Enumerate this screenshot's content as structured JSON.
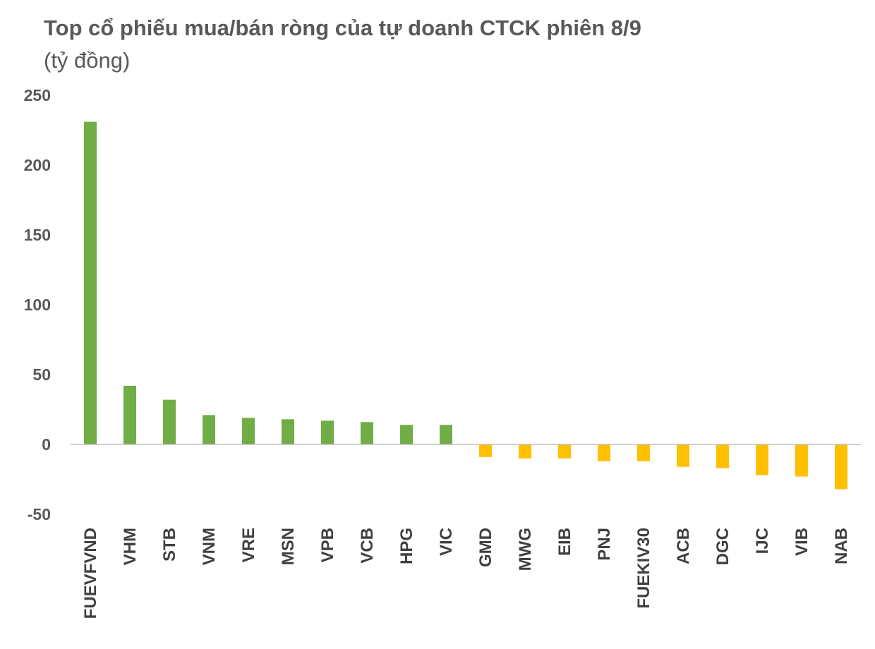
{
  "colors": {
    "positive": "#70AD47",
    "negative": "#FFC000",
    "axis": "#BFBFBF",
    "text": "#595959"
  },
  "chart_data": {
    "type": "bar",
    "title": "Top cổ phiếu mua/bán ròng của tự doanh CTCK phiên 8/9",
    "subtitle": "(tỷ đồng)",
    "xlabel": "",
    "ylabel": "",
    "ylim": [
      -50,
      250
    ],
    "yticks": [
      250,
      200,
      150,
      100,
      50,
      0,
      -50
    ],
    "grid": false,
    "legend": "none",
    "categories": [
      "FUEVFVND",
      "VHM",
      "STB",
      "VNM",
      "VRE",
      "MSN",
      "VPB",
      "VCB",
      "HPG",
      "VIC",
      "GMD",
      "MWG",
      "EIB",
      "PNJ",
      "FUEKIV30",
      "ACB",
      "DGC",
      "IJC",
      "VIB",
      "NAB"
    ],
    "values": [
      231,
      42,
      32,
      21,
      19,
      18,
      17,
      16,
      14,
      14,
      -9,
      -10,
      -10,
      -12,
      -12,
      -16,
      -17,
      -22,
      -23,
      -32
    ]
  }
}
